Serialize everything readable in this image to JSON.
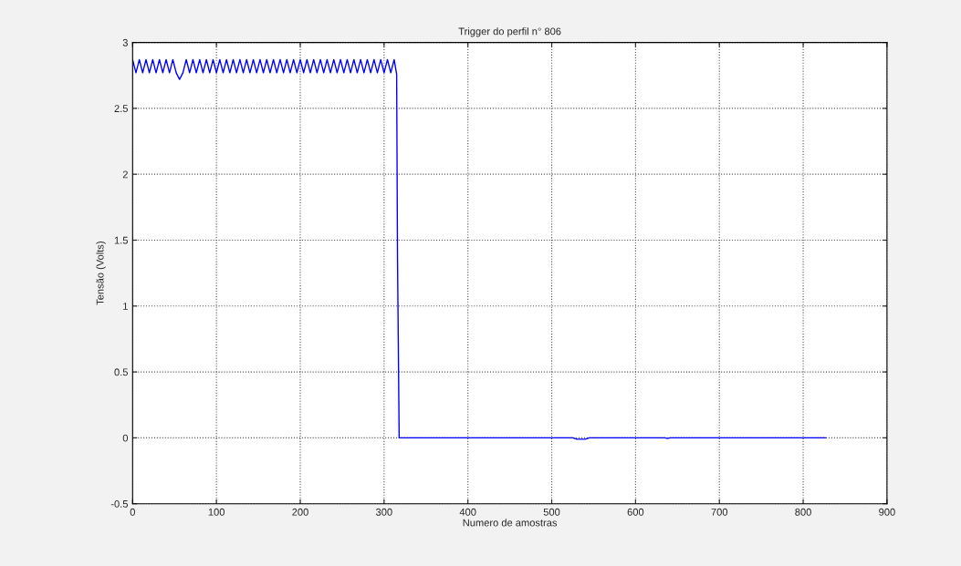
{
  "chart_data": {
    "type": "line",
    "title": "Trigger do perfil n° 806",
    "xlabel": "Numero de amostras",
    "ylabel": "Tensão (Volts)",
    "series": [
      {
        "color": "#0000ff",
        "x": [
          0,
          4,
          8,
          12,
          16,
          20,
          24,
          28,
          32,
          36,
          40,
          44,
          48,
          52,
          56,
          60,
          64,
          68,
          72,
          76,
          80,
          84,
          88,
          92,
          96,
          100,
          104,
          108,
          112,
          116,
          120,
          124,
          128,
          132,
          136,
          140,
          144,
          148,
          152,
          156,
          160,
          164,
          168,
          172,
          176,
          180,
          184,
          188,
          192,
          196,
          200,
          204,
          208,
          212,
          216,
          220,
          224,
          228,
          232,
          236,
          240,
          244,
          248,
          252,
          256,
          260,
          264,
          268,
          272,
          276,
          280,
          284,
          288,
          292,
          296,
          300,
          304,
          308,
          312,
          315,
          316,
          318,
          400,
          525,
          530,
          540,
          545,
          635,
          638,
          641,
          827
        ],
        "values": [
          2.87,
          2.77,
          2.87,
          2.77,
          2.87,
          2.77,
          2.87,
          2.77,
          2.87,
          2.77,
          2.87,
          2.77,
          2.87,
          2.77,
          2.72,
          2.77,
          2.87,
          2.77,
          2.87,
          2.77,
          2.87,
          2.77,
          2.87,
          2.77,
          2.87,
          2.77,
          2.87,
          2.77,
          2.87,
          2.77,
          2.87,
          2.77,
          2.87,
          2.77,
          2.87,
          2.77,
          2.87,
          2.77,
          2.87,
          2.77,
          2.87,
          2.77,
          2.87,
          2.77,
          2.87,
          2.77,
          2.87,
          2.77,
          2.87,
          2.77,
          2.87,
          2.77,
          2.87,
          2.77,
          2.87,
          2.77,
          2.87,
          2.77,
          2.87,
          2.77,
          2.87,
          2.77,
          2.87,
          2.77,
          2.87,
          2.77,
          2.87,
          2.77,
          2.87,
          2.77,
          2.87,
          2.77,
          2.87,
          2.77,
          2.87,
          2.77,
          2.87,
          2.77,
          2.87,
          2.76,
          1.38,
          0.0,
          0.0,
          0.0,
          -0.01,
          -0.01,
          0.0,
          0.0,
          -0.005,
          0.0,
          0.0
        ]
      }
    ],
    "xlim": [
      0,
      900
    ],
    "xticks": [
      0,
      100,
      200,
      300,
      400,
      500,
      600,
      700,
      800,
      900
    ],
    "ylim": [
      -0.5,
      3
    ],
    "yticks": [
      -0.5,
      0,
      0.5,
      1,
      1.5,
      2,
      2.5,
      3
    ],
    "grid": true,
    "line_style": "solid",
    "marker": "none"
  }
}
